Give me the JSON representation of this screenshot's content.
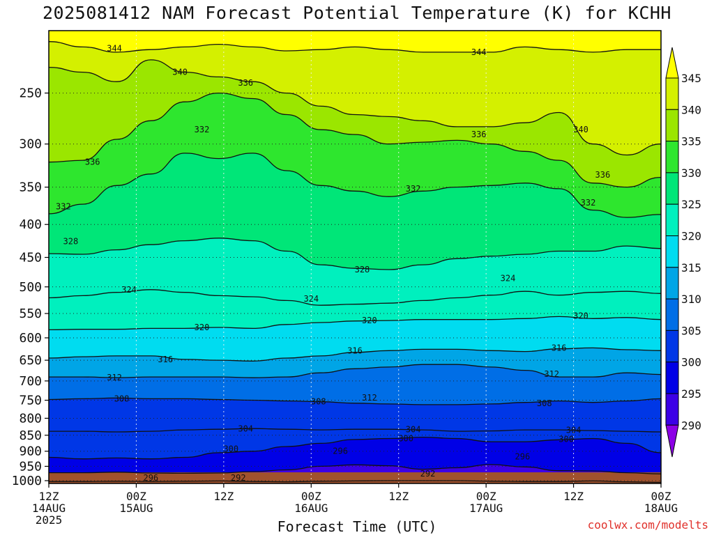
{
  "title": "2025081412 NAM Forecast Potential Temperature (K) for KCHH",
  "credit": "coolwx.com/modelts",
  "chart_data": {
    "type": "heatmap",
    "title": "2025081412 NAM Forecast Potential Temperature (K) for KCHH",
    "xlabel": "Forecast Time (UTC)",
    "ylabel": "",
    "x_ticks": [
      {
        "hours": 0,
        "label1": "12Z",
        "label2": "14AUG",
        "label3": "2025"
      },
      {
        "hours": 12,
        "label1": "00Z",
        "label2": "15AUG",
        "label3": ""
      },
      {
        "hours": 24,
        "label1": "12Z",
        "label2": "",
        "label3": ""
      },
      {
        "hours": 36,
        "label1": "00Z",
        "label2": "16AUG",
        "label3": ""
      },
      {
        "hours": 48,
        "label1": "12Z",
        "label2": "",
        "label3": ""
      },
      {
        "hours": 60,
        "label1": "00Z",
        "label2": "17AUG",
        "label3": ""
      },
      {
        "hours": 72,
        "label1": "12Z",
        "label2": "",
        "label3": ""
      },
      {
        "hours": 84,
        "label1": "00Z",
        "label2": "18AUG",
        "label3": ""
      }
    ],
    "x_range_hours": [
      0,
      84
    ],
    "y_ticks": [
      250,
      300,
      350,
      400,
      450,
      500,
      550,
      600,
      650,
      700,
      750,
      800,
      850,
      900,
      950,
      1000
    ],
    "y_range_hPa": [
      200,
      1010
    ],
    "y_scale": "log",
    "grid": true,
    "colorbar": {
      "levels": [
        290,
        295,
        300,
        305,
        310,
        315,
        320,
        325,
        330,
        335,
        340,
        345
      ],
      "colors": [
        "#8c00e6",
        "#3c00e6",
        "#0000e6",
        "#0037e6",
        "#006ee6",
        "#00a5e6",
        "#00dcf0",
        "#00f0be",
        "#00e678",
        "#2ee62e",
        "#9be600",
        "#d4f000",
        "#ffff00"
      ],
      "position": "right"
    },
    "ground_color": "#a0522d",
    "contours": [
      {
        "value": 292,
        "p": [
          1003,
          1003,
          1002,
          1003,
          1002,
          1001,
          1003,
          1004,
          1002,
          1001,
          1000,
          1000,
          1000,
          1002,
          1003,
          1003,
          1001,
          1004,
          1006
        ]
      },
      {
        "value": 296,
        "p": [
          972,
          972,
          970,
          973,
          974,
          973,
          968,
          962,
          950,
          945,
          948,
          960,
          955,
          944,
          952,
          965,
          966,
          972,
          976
        ]
      },
      {
        "value": 300,
        "p": [
          920,
          925,
          922,
          925,
          920,
          905,
          900,
          885,
          875,
          863,
          860,
          856,
          860,
          870,
          870,
          864,
          860,
          875,
          905
        ]
      },
      {
        "value": 304,
        "p": [
          838,
          838,
          840,
          838,
          834,
          832,
          830,
          832,
          834,
          832,
          832,
          834,
          838,
          837,
          834,
          834,
          836,
          838,
          840
        ]
      },
      {
        "value": 308,
        "p": [
          748,
          746,
          744,
          746,
          746,
          748,
          750,
          752,
          754,
          758,
          760,
          762,
          762,
          760,
          756,
          752,
          756,
          752,
          746
        ]
      },
      {
        "value": 312,
        "p": [
          690,
          690,
          692,
          690,
          690,
          690,
          692,
          690,
          680,
          670,
          666,
          660,
          660,
          666,
          674,
          690,
          690,
          680,
          684
        ]
      },
      {
        "value": 316,
        "p": [
          645,
          642,
          640,
          640,
          648,
          650,
          652,
          645,
          640,
          632,
          628,
          625,
          625,
          628,
          630,
          624,
          622,
          626,
          628
        ]
      },
      {
        "value": 320,
        "p": [
          583,
          582,
          582,
          580,
          580,
          578,
          580,
          572,
          568,
          565,
          564,
          562,
          562,
          562,
          560,
          556,
          560,
          558,
          562
        ]
      },
      {
        "value": 324,
        "p": [
          520,
          516,
          510,
          505,
          510,
          516,
          518,
          525,
          534,
          532,
          530,
          525,
          520,
          515,
          508,
          515,
          510,
          508,
          512
        ]
      },
      {
        "value": 328,
        "p": [
          444,
          445,
          438,
          430,
          424,
          420,
          424,
          440,
          462,
          468,
          470,
          462,
          452,
          448,
          445,
          440,
          440,
          432,
          436
        ]
      },
      {
        "value": 332,
        "p": [
          385,
          372,
          348,
          334,
          310,
          316,
          310,
          330,
          348,
          355,
          362,
          355,
          350,
          348,
          345,
          352,
          380,
          390,
          386
        ]
      },
      {
        "value": 336,
        "p": [
          320,
          318,
          295,
          276,
          258,
          250,
          255,
          270,
          285,
          290,
          300,
          298,
          296,
          300,
          308,
          318,
          345,
          350,
          338
        ]
      },
      {
        "value": 340,
        "p": [
          228,
          232,
          240,
          222,
          232,
          236,
          240,
          250,
          262,
          270,
          272,
          276,
          282,
          282,
          278,
          268,
          300,
          312,
          300
        ]
      },
      {
        "value": 344,
        "p": [
          208,
          212,
          216,
          214,
          212,
          210,
          212,
          215,
          214,
          212,
          214,
          216,
          216,
          216,
          212,
          214,
          216,
          214,
          214
        ]
      }
    ],
    "contour_labels": [
      {
        "value": "344",
        "h": 9,
        "p": 213
      },
      {
        "value": "344",
        "h": 59,
        "p": 216
      },
      {
        "value": "340",
        "h": 18,
        "p": 232
      },
      {
        "value": "336",
        "h": 27,
        "p": 241
      },
      {
        "value": "336",
        "h": 6,
        "p": 320
      },
      {
        "value": "336",
        "h": 59,
        "p": 290
      },
      {
        "value": "336",
        "h": 76,
        "p": 335
      },
      {
        "value": "340",
        "h": 73,
        "p": 285
      },
      {
        "value": "332",
        "h": 21,
        "p": 285
      },
      {
        "value": "332",
        "h": 2,
        "p": 375
      },
      {
        "value": "332",
        "h": 50,
        "p": 352
      },
      {
        "value": "332",
        "h": 74,
        "p": 370
      },
      {
        "value": "328",
        "h": 3,
        "p": 425
      },
      {
        "value": "328",
        "h": 43,
        "p": 470
      },
      {
        "value": "324",
        "h": 11,
        "p": 505
      },
      {
        "value": "324",
        "h": 36,
        "p": 522
      },
      {
        "value": "324",
        "h": 63,
        "p": 485
      },
      {
        "value": "320",
        "h": 21,
        "p": 578
      },
      {
        "value": "320",
        "h": 44,
        "p": 564
      },
      {
        "value": "320",
        "h": 73,
        "p": 555
      },
      {
        "value": "316",
        "h": 16,
        "p": 648
      },
      {
        "value": "316",
        "h": 42,
        "p": 628
      },
      {
        "value": "316",
        "h": 70,
        "p": 622
      },
      {
        "value": "312",
        "h": 9,
        "p": 692
      },
      {
        "value": "312",
        "h": 44,
        "p": 743
      },
      {
        "value": "312",
        "h": 69,
        "p": 683
      },
      {
        "value": "308",
        "h": 10,
        "p": 746
      },
      {
        "value": "308",
        "h": 37,
        "p": 754
      },
      {
        "value": "308",
        "h": 68,
        "p": 758
      },
      {
        "value": "304",
        "h": 27,
        "p": 831
      },
      {
        "value": "304",
        "h": 50,
        "p": 833
      },
      {
        "value": "304",
        "h": 72,
        "p": 835
      },
      {
        "value": "300",
        "h": 25,
        "p": 893
      },
      {
        "value": "300",
        "h": 49,
        "p": 860
      },
      {
        "value": "300",
        "h": 71,
        "p": 862
      },
      {
        "value": "296",
        "h": 40,
        "p": 900
      },
      {
        "value": "296",
        "h": 65,
        "p": 918
      },
      {
        "value": "296",
        "h": 14,
        "p": 990
      },
      {
        "value": "292",
        "h": 26,
        "p": 990
      },
      {
        "value": "292",
        "h": 52,
        "p": 975
      }
    ]
  }
}
